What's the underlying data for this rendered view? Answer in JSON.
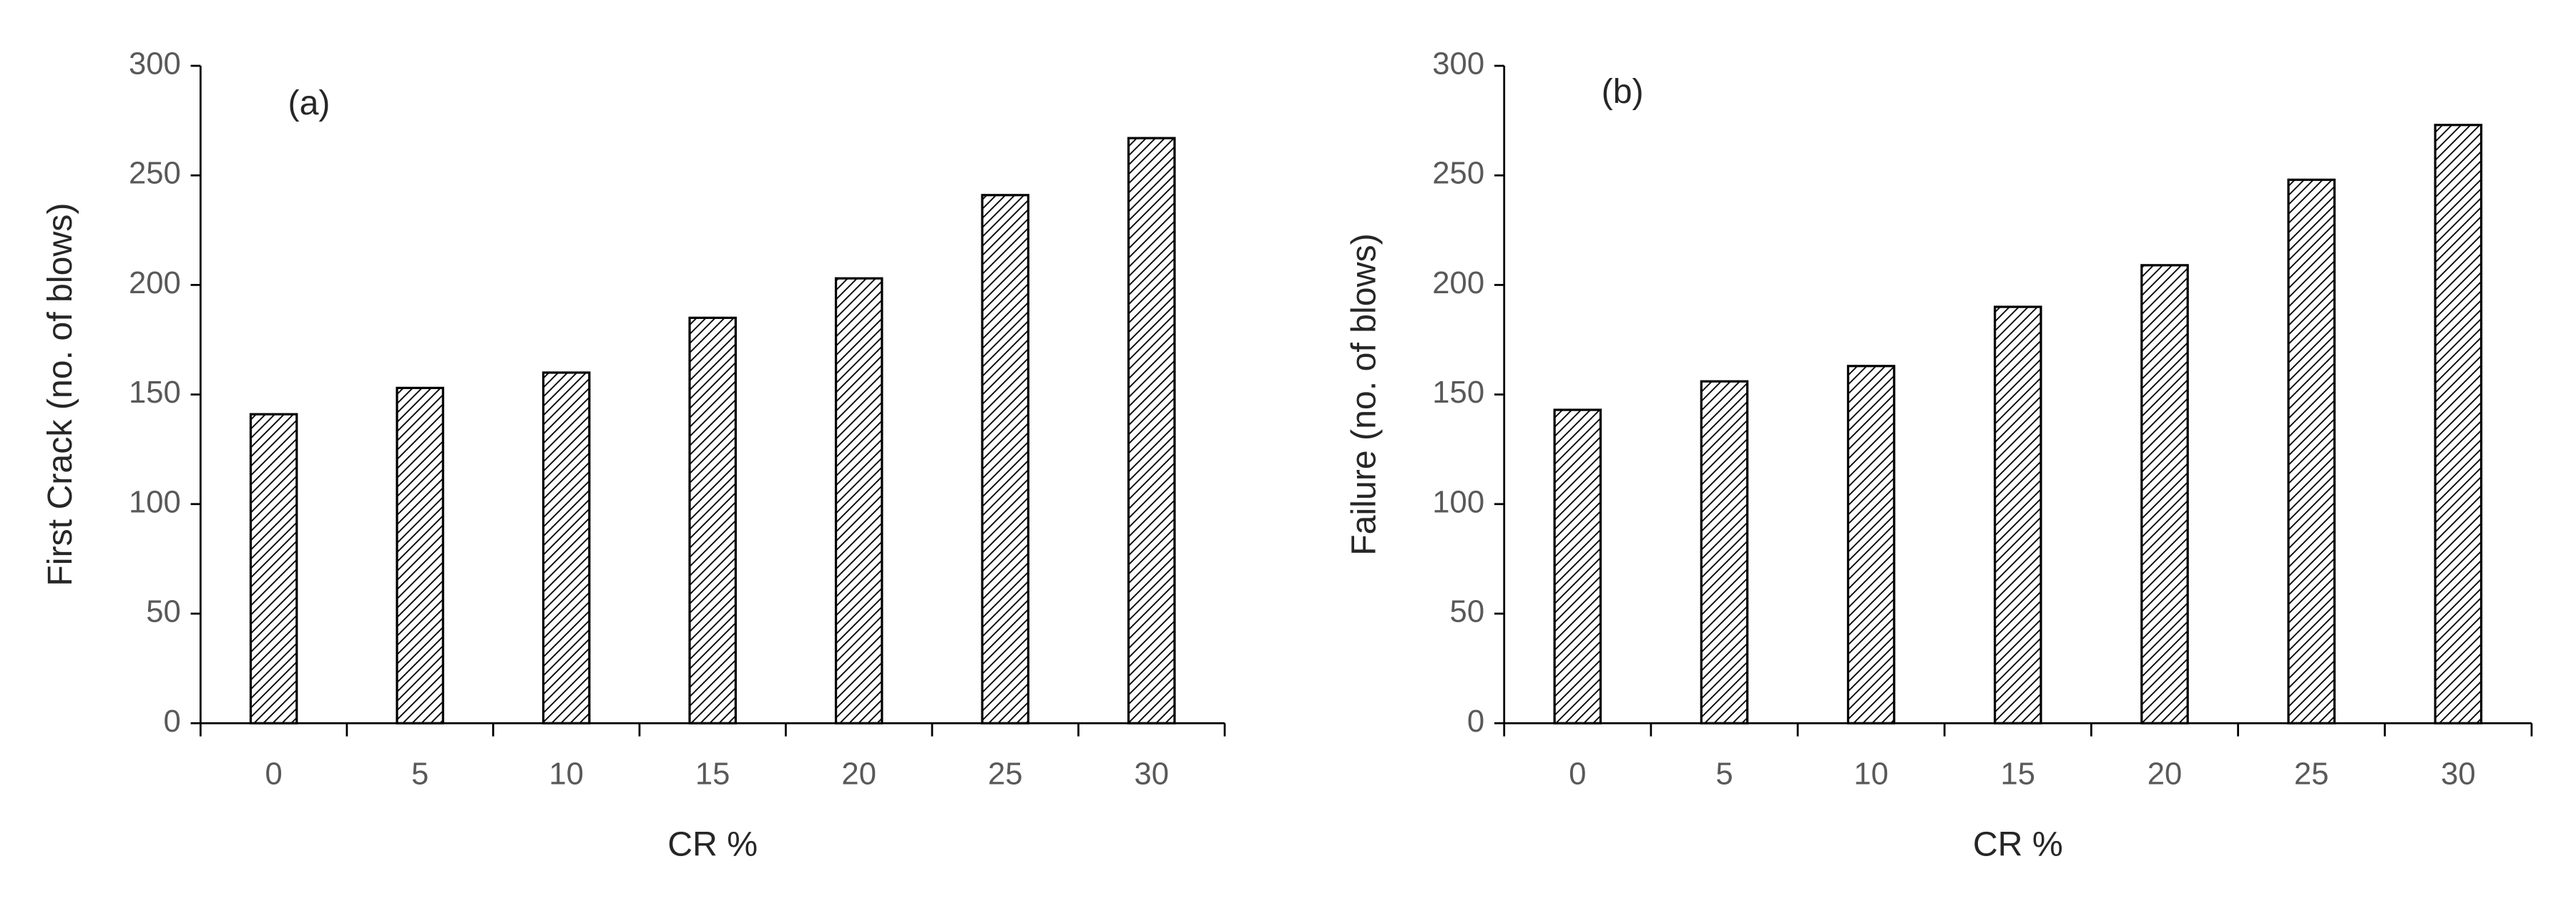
{
  "chart_data": [
    {
      "type": "bar",
      "annotation": "(a)",
      "x_label": "CR %",
      "y_label": "First Crack (no. of blows)",
      "categories": [
        "0",
        "5",
        "10",
        "15",
        "20",
        "25",
        "30"
      ],
      "values": [
        141,
        153,
        160,
        185,
        203,
        241,
        267
      ],
      "color": "#000000",
      "ylim": [
        0,
        300
      ],
      "yticks": [
        0,
        50,
        100,
        150,
        200,
        250,
        300
      ]
    },
    {
      "type": "bar",
      "annotation": "(b)",
      "x_label": "CR %",
      "y_label": "Failure (no. of blows)",
      "categories": [
        "0",
        "5",
        "10",
        "15",
        "20",
        "25",
        "30"
      ],
      "values": [
        143,
        156,
        163,
        190,
        209,
        248,
        273
      ],
      "color": "#000000",
      "ylim": [
        0,
        300
      ],
      "yticks": [
        0,
        50,
        100,
        150,
        200,
        250,
        300
      ]
    }
  ]
}
